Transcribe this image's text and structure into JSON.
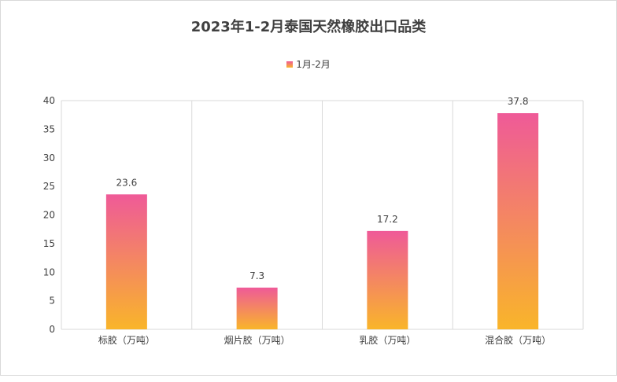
{
  "chart_data": {
    "type": "bar",
    "title": "2023年1-2月泰国天然橡胶出口品类",
    "categories": [
      "标胶（万吨）",
      "烟片胶（万吨）",
      "乳胶（万吨）",
      "混合胶（万吨）"
    ],
    "series": [
      {
        "name": "1月-2月",
        "values": [
          23.6,
          7.3,
          17.2,
          37.8
        ]
      }
    ],
    "data_labels": [
      "23.6",
      "7.3",
      "17.2",
      "37.8"
    ],
    "y_ticks": [
      "0",
      "5",
      "10",
      "15",
      "20",
      "25",
      "30",
      "35",
      "40"
    ],
    "ylim": [
      0,
      40
    ],
    "xlabel": "",
    "ylabel": "",
    "grid": "vertical",
    "legend_position": "top",
    "colors": {
      "gradient_top": "#ef5a98",
      "gradient_bottom": "#f9b52a",
      "grid": "#d9d9d9",
      "text": "#404040"
    }
  }
}
